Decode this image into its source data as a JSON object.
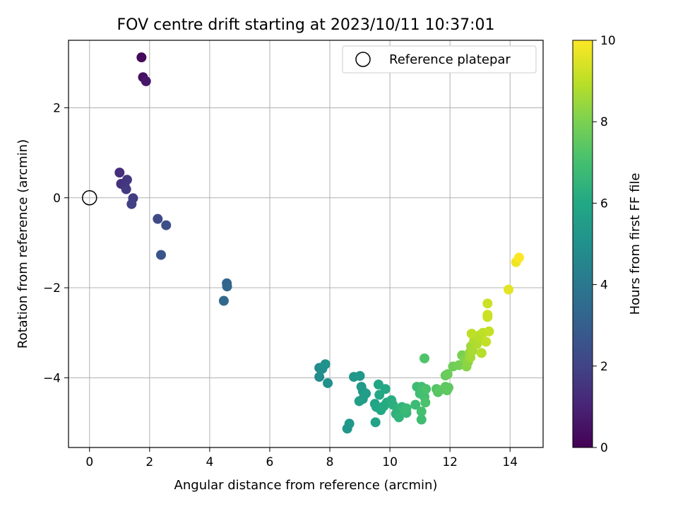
{
  "chart_data": {
    "type": "scatter",
    "title": "FOV centre drift starting at 2023/10/11 10:37:01",
    "xlabel": "Angular distance from reference (arcmin)",
    "ylabel": "Rotation from reference (arcmin)",
    "xlim": [
      -0.7,
      15.1
    ],
    "ylim": [
      -5.55,
      3.5
    ],
    "xticks": [
      0,
      2,
      4,
      6,
      8,
      10,
      12,
      14
    ],
    "yticks": [
      -4,
      -2,
      0,
      2
    ],
    "grid": true,
    "legend": {
      "label": "Reference platepar",
      "placement": "top-right"
    },
    "reference_point": {
      "x": 0,
      "y": 0
    },
    "colorbar": {
      "label": "Hours from first FF file",
      "min": 0,
      "max": 10,
      "ticks": [
        0,
        2,
        4,
        6,
        8,
        10
      ],
      "colormap": "viridis"
    },
    "points": [
      [
        1.73,
        3.12,
        0.2
      ],
      [
        1.78,
        2.68,
        0.4
      ],
      [
        1.88,
        2.59,
        0.6
      ],
      [
        1.0,
        0.56,
        1.3
      ],
      [
        1.05,
        0.31,
        1.4
      ],
      [
        1.17,
        0.27,
        1.5
      ],
      [
        1.25,
        0.4,
        1.6
      ],
      [
        1.22,
        0.19,
        1.7
      ],
      [
        1.45,
        -0.01,
        1.8
      ],
      [
        1.4,
        -0.14,
        1.9
      ],
      [
        2.27,
        -0.47,
        2.2
      ],
      [
        2.55,
        -0.61,
        2.4
      ],
      [
        2.38,
        -1.27,
        2.6
      ],
      [
        4.57,
        -1.9,
        3.2
      ],
      [
        4.58,
        -1.97,
        3.3
      ],
      [
        4.47,
        -2.29,
        3.4
      ],
      [
        7.65,
        -3.78,
        4.7
      ],
      [
        7.65,
        -3.98,
        4.8
      ],
      [
        7.75,
        -3.8,
        4.9
      ],
      [
        7.85,
        -3.7,
        5.0
      ],
      [
        7.93,
        -4.12,
        5.0
      ],
      [
        8.8,
        -3.98,
        5.2
      ],
      [
        9.0,
        -3.96,
        5.3
      ],
      [
        9.05,
        -4.2,
        5.4
      ],
      [
        9.1,
        -4.3,
        5.4
      ],
      [
        9.2,
        -4.35,
        5.5
      ],
      [
        9.1,
        -4.47,
        5.5
      ],
      [
        8.98,
        -4.52,
        5.6
      ],
      [
        8.65,
        -5.02,
        5.3
      ],
      [
        8.58,
        -5.13,
        5.2
      ],
      [
        9.5,
        -4.58,
        5.8
      ],
      [
        9.55,
        -4.65,
        5.9
      ],
      [
        9.52,
        -4.99,
        5.8
      ],
      [
        9.7,
        -4.72,
        6.0
      ],
      [
        9.65,
        -4.38,
        6.0
      ],
      [
        9.62,
        -4.15,
        5.9
      ],
      [
        9.85,
        -4.25,
        6.0
      ],
      [
        9.9,
        -4.55,
        6.1
      ],
      [
        10.05,
        -4.5,
        6.2
      ],
      [
        9.8,
        -4.63,
        6.1
      ],
      [
        10.1,
        -4.6,
        6.3
      ],
      [
        10.25,
        -4.7,
        6.4
      ],
      [
        10.2,
        -4.8,
        6.4
      ],
      [
        10.4,
        -4.65,
        6.5
      ],
      [
        10.3,
        -4.88,
        6.5
      ],
      [
        10.55,
        -4.78,
        6.6
      ],
      [
        10.5,
        -4.72,
        6.7
      ],
      [
        10.55,
        -4.68,
        6.7
      ],
      [
        10.85,
        -4.6,
        6.8
      ],
      [
        10.9,
        -4.2,
        6.8
      ],
      [
        11.0,
        -4.35,
        6.9
      ],
      [
        11.05,
        -4.2,
        6.9
      ],
      [
        11.1,
        -4.28,
        7.0
      ],
      [
        11.15,
        -4.42,
        7.0
      ],
      [
        11.2,
        -4.25,
        7.1
      ],
      [
        11.18,
        -4.55,
        7.1
      ],
      [
        11.05,
        -4.75,
        7.0
      ],
      [
        11.05,
        -4.93,
        6.9
      ],
      [
        11.15,
        -3.57,
        7.2
      ],
      [
        11.55,
        -4.25,
        7.3
      ],
      [
        11.6,
        -4.32,
        7.3
      ],
      [
        11.65,
        -4.28,
        7.4
      ],
      [
        11.85,
        -4.2,
        7.5
      ],
      [
        11.9,
        -4.28,
        7.5
      ],
      [
        11.95,
        -4.22,
        7.5
      ],
      [
        11.85,
        -3.95,
        7.6
      ],
      [
        11.92,
        -3.92,
        7.7
      ],
      [
        12.1,
        -3.75,
        7.8
      ],
      [
        12.3,
        -3.72,
        7.9
      ],
      [
        12.4,
        -3.5,
        8.0
      ],
      [
        12.5,
        -3.6,
        8.1
      ],
      [
        12.55,
        -3.75,
        8.2
      ],
      [
        12.6,
        -3.65,
        8.3
      ],
      [
        12.65,
        -3.45,
        8.4
      ],
      [
        12.7,
        -3.3,
        8.5
      ],
      [
        12.68,
        -3.55,
        8.6
      ],
      [
        12.75,
        -3.4,
        8.7
      ],
      [
        12.8,
        -3.18,
        8.8
      ],
      [
        12.9,
        -3.25,
        8.8
      ],
      [
        12.95,
        -3.1,
        8.9
      ],
      [
        13.0,
        -3.05,
        8.9
      ],
      [
        12.72,
        -3.02,
        9.0
      ],
      [
        13.1,
        -3.0,
        9.0
      ],
      [
        13.05,
        -3.45,
        8.9
      ],
      [
        13.2,
        -3.2,
        9.1
      ],
      [
        13.3,
        -2.97,
        9.1
      ],
      [
        13.25,
        -2.35,
        9.2
      ],
      [
        13.25,
        -2.6,
        9.3
      ],
      [
        13.25,
        -2.65,
        9.2
      ],
      [
        13.95,
        -2.04,
        9.6
      ],
      [
        14.2,
        -1.43,
        9.8
      ],
      [
        14.3,
        -1.33,
        10.0
      ]
    ]
  }
}
